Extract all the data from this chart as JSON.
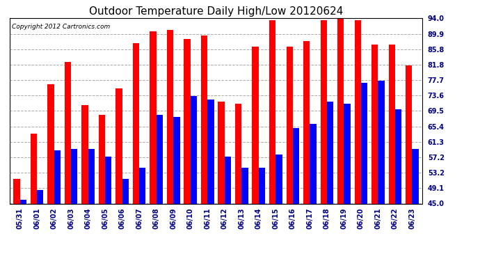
{
  "title": "Outdoor Temperature Daily High/Low 20120624",
  "copyright": "Copyright 2012 Cartronics.com",
  "dates": [
    "05/31",
    "06/01",
    "06/02",
    "06/03",
    "06/04",
    "06/05",
    "06/06",
    "06/07",
    "06/08",
    "06/09",
    "06/10",
    "06/11",
    "06/12",
    "06/13",
    "06/14",
    "06/15",
    "06/16",
    "06/17",
    "06/18",
    "06/19",
    "06/20",
    "06/21",
    "06/22",
    "06/23"
  ],
  "highs": [
    51.5,
    63.5,
    76.5,
    82.5,
    71.0,
    68.5,
    75.5,
    87.5,
    90.5,
    91.0,
    88.5,
    89.5,
    72.0,
    71.5,
    86.5,
    93.5,
    86.5,
    88.0,
    93.5,
    94.5,
    93.5,
    87.0,
    87.0,
    81.5
  ],
  "lows": [
    46.0,
    48.5,
    59.0,
    59.5,
    59.5,
    57.5,
    51.5,
    54.5,
    68.5,
    68.0,
    73.5,
    72.5,
    57.5,
    54.5,
    54.5,
    58.0,
    65.0,
    66.0,
    72.0,
    71.5,
    77.0,
    77.5,
    70.0,
    59.5
  ],
  "high_color": "#ff0000",
  "low_color": "#0000ff",
  "bg_color": "#ffffff",
  "grid_color": "#aaaaaa",
  "ymin": 45.0,
  "ymax": 94.0,
  "yticks": [
    45.0,
    49.1,
    53.2,
    57.2,
    61.3,
    65.4,
    69.5,
    73.6,
    77.7,
    81.8,
    85.8,
    89.9,
    94.0
  ],
  "bar_width": 0.38,
  "title_fontsize": 11,
  "tick_fontsize": 7,
  "copyright_fontsize": 6.5
}
